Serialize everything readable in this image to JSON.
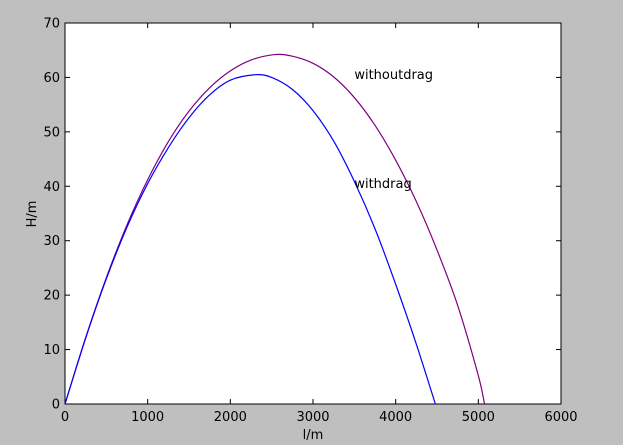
{
  "chart_data": {
    "type": "line",
    "title": "",
    "xlabel": "l/m",
    "ylabel": "H/m",
    "xlim": [
      0,
      6000
    ],
    "ylim": [
      0,
      70
    ],
    "xticks": [
      0,
      1000,
      2000,
      3000,
      4000,
      5000,
      6000
    ],
    "yticks": [
      0,
      10,
      20,
      30,
      40,
      50,
      60,
      70
    ],
    "grid": false,
    "legend": "none",
    "background_color": "#bfbfbf",
    "plot_background_color": "#ffffff",
    "series": [
      {
        "label_id": "withoutdrag",
        "color": "#800080",
        "x": [
          0,
          250,
          500,
          750,
          1000,
          1250,
          1500,
          1750,
          2000,
          2250,
          2540,
          2750,
          3000,
          3250,
          3500,
          3750,
          4000,
          4250,
          4500,
          4750,
          5000,
          5075
        ],
        "y": [
          0,
          12.2,
          23.2,
          32.9,
          41.2,
          48.2,
          53.8,
          58.1,
          61.2,
          63.2,
          64.2,
          63.9,
          62.6,
          60.1,
          56.3,
          51.2,
          44.8,
          37.2,
          28.3,
          18.1,
          5.2,
          0
        ]
      },
      {
        "label_id": "withdrag",
        "color": "#0000ff",
        "x": [
          0,
          250,
          500,
          750,
          1000,
          1250,
          1500,
          1750,
          2000,
          2300,
          2500,
          2750,
          3000,
          3250,
          3500,
          3750,
          4000,
          4250,
          4480
        ],
        "y": [
          0,
          12.1,
          23.0,
          32.5,
          40.5,
          47.1,
          52.6,
          56.8,
          59.5,
          60.5,
          60.0,
          57.8,
          53.9,
          48.3,
          40.9,
          32.2,
          22.0,
          11.0,
          0
        ]
      }
    ],
    "annotations": [
      {
        "id": "withoutdrag",
        "text": "withoutdrag",
        "x": 3500,
        "y": 60.5
      },
      {
        "id": "withdrag",
        "text": "withdrag",
        "x": 3500,
        "y": 40.5
      }
    ]
  }
}
